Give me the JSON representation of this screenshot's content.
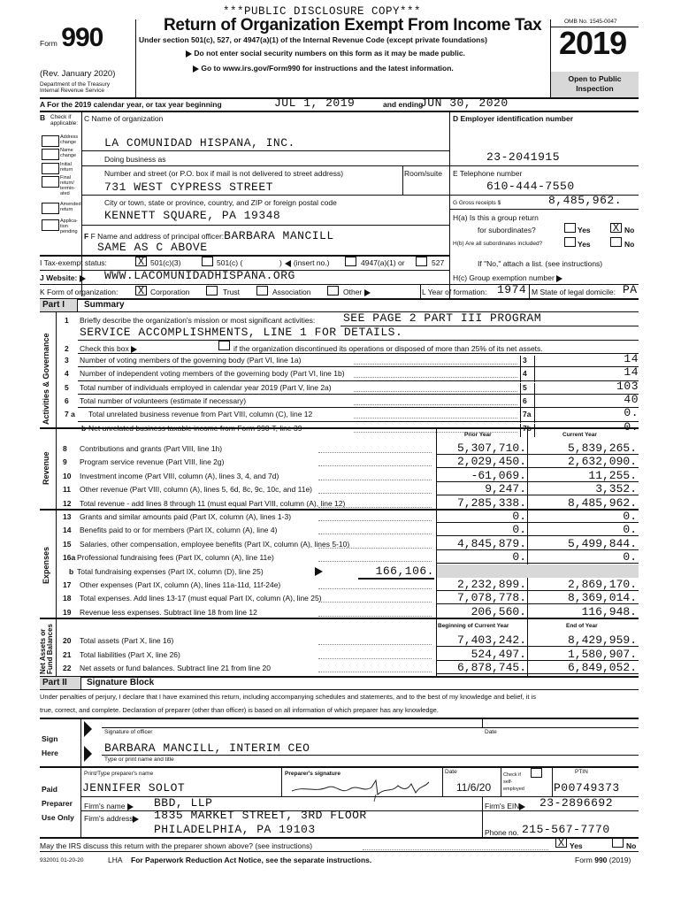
{
  "disclosure": "***PUBLIC DISCLOSURE COPY***",
  "header": {
    "form_word": "Form",
    "form_number": "990",
    "rev": "(Rev. January 2020)",
    "dept1": "Department of the Treasury",
    "dept2": "Internal Revenue Service",
    "title": "Return of Organization Exempt From Income Tax",
    "subtitle": "Under section 501(c), 527, or 4947(a)(1) of the Internal Revenue Code (except private foundations)",
    "note1": "Do not enter social security numbers on this form as it may be made public.",
    "note2": "Go to www.irs.gov/Form990 for instructions and the latest information.",
    "omb": "OMB No. 1545-0047",
    "year": "2019",
    "open": "Open to Public Inspection"
  },
  "line_a": {
    "label": "A For the 2019 calendar year, or tax year beginning",
    "begin": "JUL 1, 2019",
    "and_ending": "and ending",
    "end": "JUN 30, 2020"
  },
  "b": {
    "label": "B",
    "check": "Check if applicable:",
    "items": [
      "Address change",
      "Name change",
      "Initial return",
      "Final return/ termin- ated",
      "Amended return",
      "Applica- tion pending"
    ]
  },
  "c": {
    "name_label": "C Name of organization",
    "name": "LA COMUNIDAD HISPANA, INC.",
    "dba_label": "Doing business as",
    "street_label": "Number and street (or P.O. box if mail is not delivered to street address)",
    "room_label": "Room/suite",
    "street": "731 WEST CYPRESS STREET",
    "city_label": "City or town, state or province, country, and ZIP or foreign postal code",
    "city": "KENNETT SQUARE, PA  19348"
  },
  "d": {
    "label": "D Employer identification number",
    "ein": "23-2041915"
  },
  "e": {
    "label": "E Telephone number",
    "phone": "610-444-7550"
  },
  "g": {
    "label": "G Gross receipts $",
    "value": "8,485,962."
  },
  "f": {
    "label": "F Name and address of principal officer:",
    "name": "BARBARA MANCILL",
    "address": "SAME AS C ABOVE"
  },
  "h": {
    "ha1": "H(a) Is this a group return",
    "ha2": "for subordinates?",
    "yes": "Yes",
    "no": "No",
    "ha_mark": "X",
    "hb": "H(b) Are all subordinates included?",
    "hb_note": "If \"No,\" attach a list. (see instructions)",
    "hc": "H(c) Group exemption number"
  },
  "i": {
    "label": "I Tax-exempt status:",
    "mark": "X",
    "c3": "501(c)(3)",
    "c": "501(c) (",
    "insert": "(insert no.)",
    "a1": "4947(a)(1) or",
    "s527": "527"
  },
  "j": {
    "label": "J Website:",
    "value": "WWW.LACOMUNIDADHISPANA.ORG"
  },
  "k": {
    "label": "K Form of organization:",
    "mark": "X",
    "corp": "Corporation",
    "trust": "Trust",
    "assoc": "Association",
    "other": "Other"
  },
  "l": {
    "label": "L Year of formation:",
    "value": "1974"
  },
  "mm": {
    "label": "M State of legal domicile:",
    "value": "PA"
  },
  "part1": {
    "part": "Part I",
    "title": "Summary",
    "side_gov": "Activities & Governance",
    "side_rev": "Revenue",
    "side_exp": "Expenses",
    "side_net": "Net Assets or Fund Balances",
    "line1_num": "1",
    "line1_label": "Briefly describe the organization's mission or most significant activities:",
    "line1_v1": "SEE PAGE 2 PART III PROGRAM",
    "line1_v2": "SERVICE ACCOMPLISHMENTS, LINE 1 FOR DETAILS.",
    "line2_num": "2",
    "line2_a": "Check this box",
    "line2_b": "if the organization discontinued its operations or disposed of more than 25% of its net assets.",
    "gov": [
      {
        "num": "3",
        "label": "Number of voting members of the governing body (Part VI, line 1a)",
        "box": "3",
        "value": "14"
      },
      {
        "num": "4",
        "label": "Number of independent voting members of the governing body (Part VI, line 1b)",
        "box": "4",
        "value": "14"
      },
      {
        "num": "5",
        "label": "Total number of individuals employed in calendar year 2019 (Part V, line 2a)",
        "box": "5",
        "value": "103"
      },
      {
        "num": "6",
        "label": "Total number of volunteers (estimate if necessary)",
        "box": "6",
        "value": "40"
      },
      {
        "num": "7 a",
        "label": "Total unrelated business revenue from Part VIII, column (C), line 12",
        "box": "7a",
        "value": "0."
      },
      {
        "num": "b",
        "label": "Net unrelated business taxable income from Form 990-T, line 39",
        "box": "7b",
        "value": "0."
      }
    ],
    "col_prior": "Prior Year",
    "col_current": "Current Year",
    "fin": [
      {
        "num": "8",
        "label": "Contributions and grants (Part VIII, line 1h)",
        "prior": "5,307,710.",
        "current": "5,839,265."
      },
      {
        "num": "9",
        "label": "Program service revenue (Part VIII, line 2g)",
        "prior": "2,029,450.",
        "current": "2,632,090."
      },
      {
        "num": "10",
        "label": "Investment income (Part VIII, column (A), lines 3, 4, and 7d)",
        "prior": "-61,069.",
        "current": "11,255."
      },
      {
        "num": "11",
        "label": "Other revenue (Part VIII, column (A), lines 5, 6d, 8c, 9c, 10c, and 11e)",
        "prior": "9,247.",
        "current": "3,352."
      },
      {
        "num": "12",
        "label": "Total revenue - add lines 8 through 11 (must equal Part VIII, column (A), line 12)",
        "prior": "7,285,338.",
        "current": "8,485,962."
      },
      {
        "num": "13",
        "label": "Grants and similar amounts paid (Part IX, column (A), lines 1-3)",
        "prior": "0.",
        "current": "0."
      },
      {
        "num": "14",
        "label": "Benefits paid to or for members (Part IX, column (A), line 4)",
        "prior": "0.",
        "current": "0."
      },
      {
        "num": "15",
        "label": "Salaries, other compensation, employee benefits (Part IX, column (A), lines 5-10)",
        "prior": "4,845,879.",
        "current": "5,499,844."
      },
      {
        "num": "16a",
        "label": "Professional fundraising fees (Part IX, column (A), line 11e)",
        "prior": "0.",
        "current": "0."
      },
      {
        "num": "b",
        "label": "Total fundraising expenses (Part IX, column (D), line 25)",
        "inline": "166,106."
      },
      {
        "num": "17",
        "label": "Other expenses (Part IX, column (A), lines 11a-11d, 11f-24e)",
        "prior": "2,232,899.",
        "current": "2,869,170."
      },
      {
        "num": "18",
        "label": "Total expenses. Add lines 13-17 (must equal Part IX, column (A), line 25)",
        "prior": "7,078,778.",
        "current": "8,369,014."
      },
      {
        "num": "19",
        "label": "Revenue less expenses. Subtract line 18 from line 12",
        "prior": "206,560.",
        "current": "116,948."
      }
    ],
    "col_begin": "Beginning of Current Year",
    "col_end": "End of Year",
    "net": [
      {
        "num": "20",
        "label": "Total assets (Part X, line 16)",
        "prior": "7,403,242.",
        "current": "8,429,959."
      },
      {
        "num": "21",
        "label": "Total liabilities (Part X, line 26)",
        "prior": "524,497.",
        "current": "1,580,907."
      },
      {
        "num": "22",
        "label": "Net assets or fund balances. Subtract line 21 from line 20",
        "prior": "6,878,745.",
        "current": "6,849,052."
      }
    ]
  },
  "part2": {
    "part": "Part II",
    "title": "Signature Block",
    "penalty1": "Under penalties of perjury, I declare that I have examined this return, including accompanying schedules and statements, and to the best of my knowledge and belief, it is",
    "penalty2": "true, correct, and complete. Declaration of preparer (other than officer) is based on all information of which preparer has any knowledge.",
    "sign": "Sign",
    "here": "Here",
    "sig_officer": "Signature of officer",
    "date": "Date",
    "officer": "BARBARA MANCILL,  INTERIM CEO",
    "type_name": "Type or print name and title",
    "paid": "Paid",
    "preparer": "Preparer",
    "use_only": "Use Only",
    "prep_name_label": "Print/Type preparer's name",
    "prep_name": "JENNIFER SOLOT",
    "prep_sig_label": "Preparer's signature",
    "prep_date_label": "Date",
    "prep_date": "11/6/20",
    "check_label": "Check if self-employed",
    "ptin_label": "PTIN",
    "ptin": "P00749373",
    "firm_name_label": "Firm's name",
    "firm_name": "BBD, LLP",
    "firm_ein_label": "Firm's EIN",
    "firm_ein": "23-2896692",
    "firm_addr_label": "Firm's address",
    "firm_addr1": "1835 MARKET STREET, 3RD FLOOR",
    "firm_addr2": "PHILADELPHIA, PA 19103",
    "phone_label": "Phone no.",
    "phone": "215-567-7770",
    "discuss": "May the IRS discuss this return with the preparer shown above? (see instructions)",
    "discuss_mark": "X",
    "yes": "Yes",
    "no": "No"
  },
  "footer": {
    "code": "932001 01-20-20",
    "lha": "LHA",
    "notice": "For Paperwork Reduction Act Notice, see the separate instructions.",
    "form": "Form",
    "num": "990",
    "year": "(2019)"
  }
}
